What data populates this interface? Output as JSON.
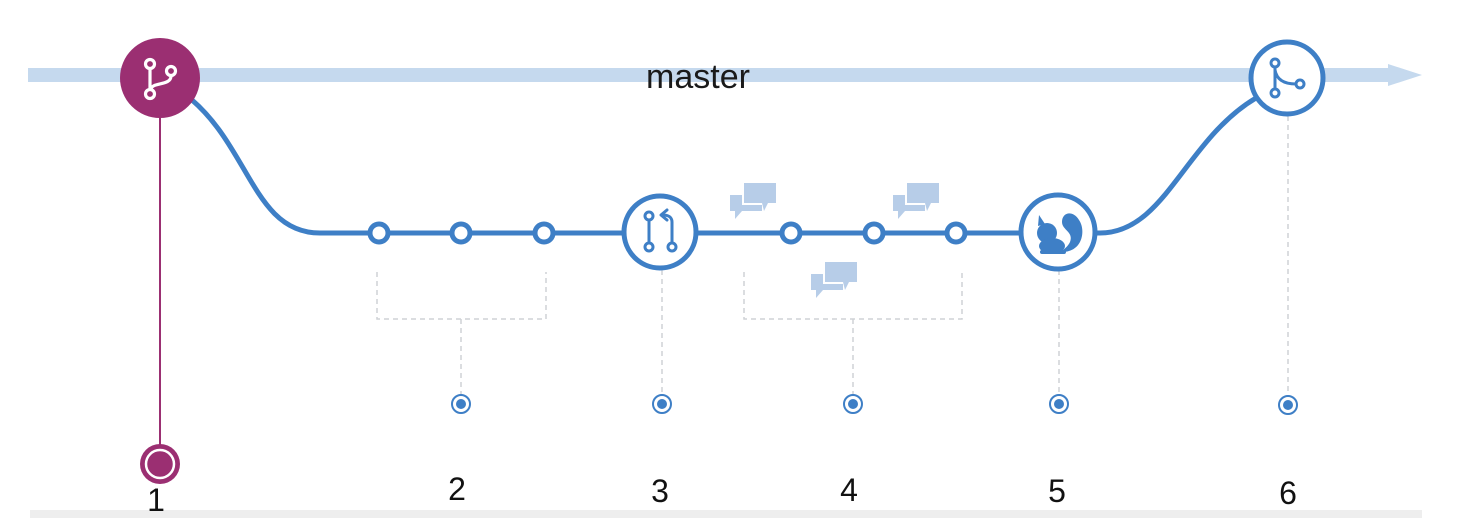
{
  "diagram": {
    "branch_name": "master",
    "colors": {
      "main_line": "#c5d9ee",
      "feature_line": "#3e7fc6",
      "branch_node": "#9b2f72",
      "white": "#ffffff",
      "dash": "#cfd2d6",
      "comment_icon": "#b7cde8",
      "bottom_band": "#eeeeee",
      "text": "#111111"
    },
    "icons": {
      "branch_start": "git-branch-icon",
      "pull_request": "pull-request-icon",
      "deploy": "squirrel-icon",
      "merge": "merge-icon",
      "discussion": "comment-bubbles-icon"
    },
    "steps": [
      "1",
      "2",
      "3",
      "4",
      "5",
      "6"
    ]
  }
}
